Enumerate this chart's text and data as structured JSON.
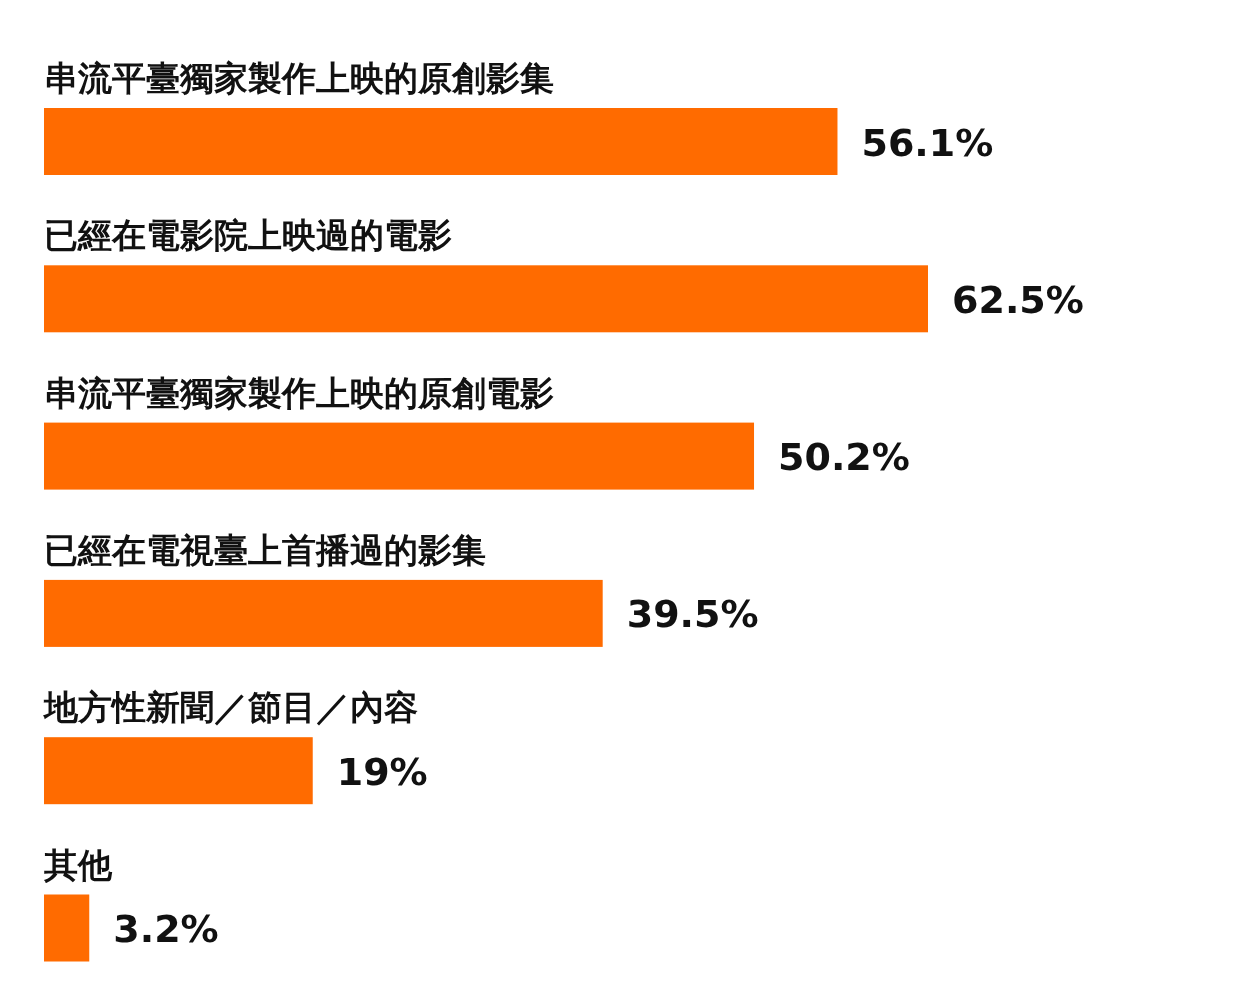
{
  "chart_data": {
    "type": "bar",
    "orientation": "horizontal",
    "categories": [
      "串流平臺獨家製作上映的原創影集",
      "已經在電影院上映過的電影",
      "串流平臺獨家製作上映的原創電影",
      "已經在電視臺上首播過的影集",
      "地方性新聞／節目／內容",
      "其他"
    ],
    "values": [
      56.1,
      62.5,
      50.2,
      39.5,
      19,
      3.2
    ],
    "value_labels": [
      "56.1%",
      "62.5%",
      "50.2%",
      "39.5%",
      "19%",
      "3.2%"
    ],
    "color": "#ff6b00"
  }
}
